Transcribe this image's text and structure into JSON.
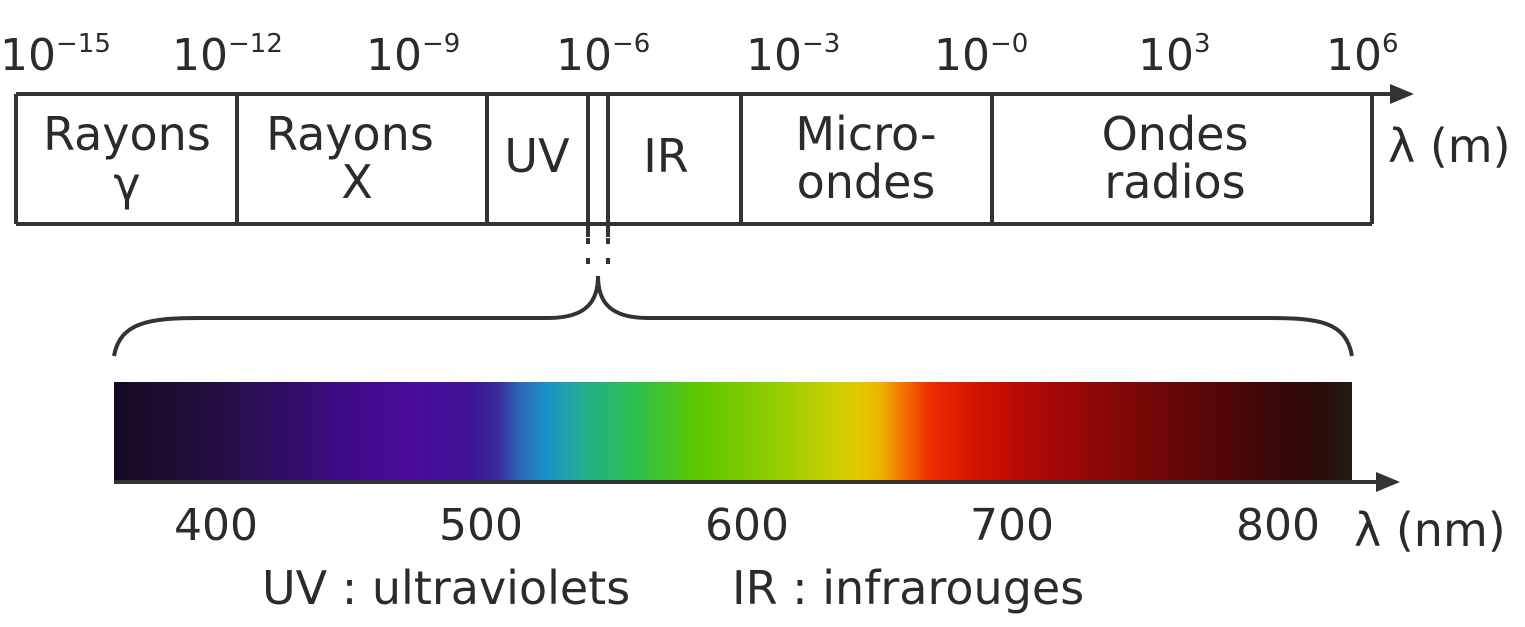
{
  "top_scale": {
    "ticks": [
      {
        "base": "10",
        "exp": "−15"
      },
      {
        "base": "10",
        "exp": "−12"
      },
      {
        "base": "10",
        "exp": "−9"
      },
      {
        "base": "10",
        "exp": "−6"
      },
      {
        "base": "10",
        "exp": "−3"
      },
      {
        "base": "10",
        "exp": "−0"
      },
      {
        "base": "10",
        "exp": "3"
      },
      {
        "base": "10",
        "exp": "6"
      }
    ],
    "unit": "λ (m)",
    "bands": [
      {
        "line1": "Rayons",
        "line2": "γ"
      },
      {
        "line1": "Rayons",
        "line2": "X"
      },
      {
        "line1": "UV",
        "line2": ""
      },
      {
        "line1": "IR",
        "line2": ""
      },
      {
        "line1": "Micro-",
        "line2": "ondes"
      },
      {
        "line1": "Ondes",
        "line2": "radios"
      }
    ]
  },
  "visible_scale": {
    "ticks": [
      "400",
      "500",
      "600",
      "700",
      "800"
    ],
    "unit": "λ (nm)"
  },
  "legend": {
    "uv": "UV : ultraviolets",
    "ir": "IR : infrarouges"
  },
  "colors": {
    "line": "#333333",
    "text": "#2b2b2b"
  }
}
